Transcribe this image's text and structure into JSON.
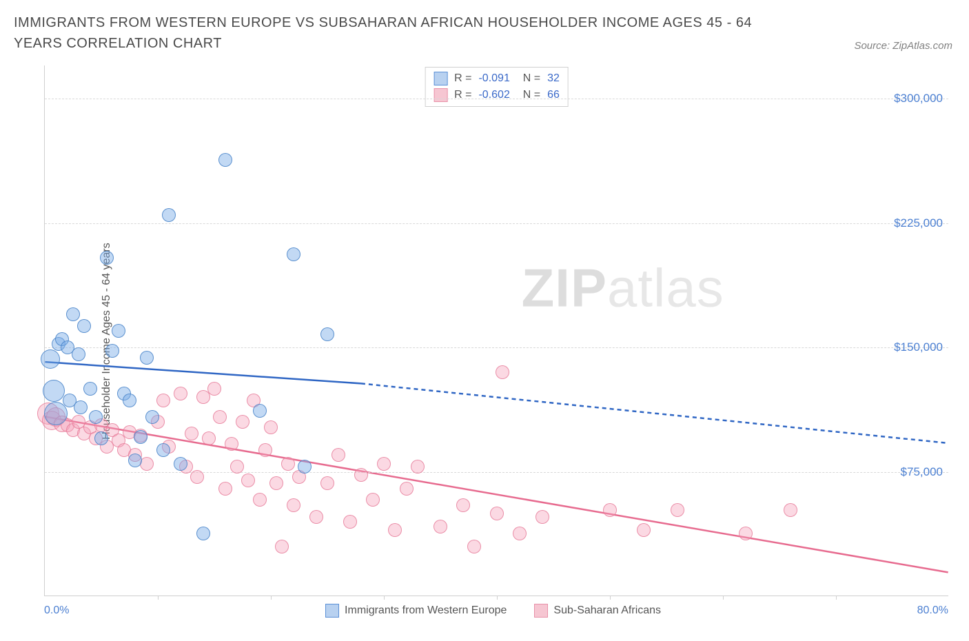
{
  "title": "IMMIGRANTS FROM WESTERN EUROPE VS SUBSAHARAN AFRICAN HOUSEHOLDER INCOME AGES 45 - 64 YEARS CORRELATION CHART",
  "source": "Source: ZipAtlas.com",
  "watermark_a": "ZIP",
  "watermark_b": "atlas",
  "chart": {
    "type": "scatter",
    "ylabel": "Householder Income Ages 45 - 64 years",
    "xlim": [
      0,
      80
    ],
    "ylim": [
      0,
      320000
    ],
    "x_min_label": "0.0%",
    "x_max_label": "80.0%",
    "y_ticks": [
      75000,
      150000,
      225000,
      300000
    ],
    "y_tick_labels": [
      "$75,000",
      "$150,000",
      "$225,000",
      "$300,000"
    ],
    "x_tick_positions": [
      10,
      20,
      30,
      40,
      50,
      60,
      70
    ],
    "background_color": "#ffffff",
    "grid_color": "#d8d8d8",
    "axis_color": "#cfcfcf",
    "tick_label_color": "#4b7fd1",
    "stats": {
      "blue": {
        "R": "-0.091",
        "N": "32"
      },
      "pink": {
        "R": "-0.602",
        "N": "66"
      }
    },
    "legend": {
      "blue": "Immigrants from Western Europe",
      "pink": "Sub-Saharan Africans"
    },
    "series": {
      "blue": {
        "color_fill": "rgba(120,170,230,0.45)",
        "color_stroke": "rgba(70,130,200,0.85)",
        "marker_radius": 10,
        "trend": {
          "x1": 0,
          "y1": 141000,
          "x2_solid": 28,
          "y2_solid": 128000,
          "x2": 80,
          "y2": 92000,
          "stroke": "#2f66c4",
          "stroke_width": 2.5,
          "dash": "6 5"
        },
        "points": [
          {
            "x": 0.5,
            "y": 143000,
            "r": 14
          },
          {
            "x": 0.8,
            "y": 124000,
            "r": 16
          },
          {
            "x": 1.0,
            "y": 110000,
            "r": 17
          },
          {
            "x": 1.2,
            "y": 152000,
            "r": 10
          },
          {
            "x": 1.5,
            "y": 155000,
            "r": 10
          },
          {
            "x": 2.0,
            "y": 150000,
            "r": 10
          },
          {
            "x": 2.2,
            "y": 118000,
            "r": 10
          },
          {
            "x": 2.5,
            "y": 170000,
            "r": 10
          },
          {
            "x": 3.0,
            "y": 146000,
            "r": 10
          },
          {
            "x": 3.2,
            "y": 114000,
            "r": 10
          },
          {
            "x": 3.5,
            "y": 163000,
            "r": 10
          },
          {
            "x": 4.0,
            "y": 125000,
            "r": 10
          },
          {
            "x": 4.5,
            "y": 108000,
            "r": 10
          },
          {
            "x": 5.0,
            "y": 95000,
            "r": 10
          },
          {
            "x": 5.5,
            "y": 204000,
            "r": 10
          },
          {
            "x": 6.0,
            "y": 148000,
            "r": 10
          },
          {
            "x": 6.5,
            "y": 160000,
            "r": 10
          },
          {
            "x": 7.0,
            "y": 122000,
            "r": 10
          },
          {
            "x": 7.5,
            "y": 118000,
            "r": 10
          },
          {
            "x": 8.0,
            "y": 82000,
            "r": 10
          },
          {
            "x": 8.5,
            "y": 96000,
            "r": 10
          },
          {
            "x": 9.0,
            "y": 144000,
            "r": 10
          },
          {
            "x": 9.5,
            "y": 108000,
            "r": 10
          },
          {
            "x": 10.5,
            "y": 88000,
            "r": 10
          },
          {
            "x": 11.0,
            "y": 230000,
            "r": 10
          },
          {
            "x": 12.0,
            "y": 80000,
            "r": 10
          },
          {
            "x": 14.0,
            "y": 38000,
            "r": 10
          },
          {
            "x": 16.0,
            "y": 263000,
            "r": 10
          },
          {
            "x": 19.0,
            "y": 112000,
            "r": 10
          },
          {
            "x": 22.0,
            "y": 206000,
            "r": 10
          },
          {
            "x": 23.0,
            "y": 78000,
            "r": 10
          },
          {
            "x": 25.0,
            "y": 158000,
            "r": 10
          }
        ]
      },
      "pink": {
        "color_fill": "rgba(245,160,185,0.40)",
        "color_stroke": "rgba(230,120,150,0.80)",
        "marker_radius": 10,
        "trend": {
          "x1": 0,
          "y1": 108000,
          "x2_solid": 80,
          "y2_solid": 14000,
          "x2": 80,
          "y2": 14000,
          "stroke": "#e76b8f",
          "stroke_width": 2.5,
          "dash": ""
        },
        "points": [
          {
            "x": 0.3,
            "y": 110000,
            "r": 16
          },
          {
            "x": 0.6,
            "y": 106000,
            "r": 14
          },
          {
            "x": 1.0,
            "y": 108000,
            "r": 14
          },
          {
            "x": 1.5,
            "y": 104000,
            "r": 12
          },
          {
            "x": 2.0,
            "y": 103000,
            "r": 10
          },
          {
            "x": 2.5,
            "y": 100000,
            "r": 10
          },
          {
            "x": 3.0,
            "y": 105000,
            "r": 10
          },
          {
            "x": 3.5,
            "y": 98000,
            "r": 10
          },
          {
            "x": 4.0,
            "y": 102000,
            "r": 10
          },
          {
            "x": 4.5,
            "y": 95000,
            "r": 10
          },
          {
            "x": 5.0,
            "y": 103000,
            "r": 10
          },
          {
            "x": 5.5,
            "y": 90000,
            "r": 10
          },
          {
            "x": 6.0,
            "y": 100000,
            "r": 10
          },
          {
            "x": 6.5,
            "y": 94000,
            "r": 10
          },
          {
            "x": 7.0,
            "y": 88000,
            "r": 10
          },
          {
            "x": 7.5,
            "y": 99000,
            "r": 10
          },
          {
            "x": 8.0,
            "y": 85000,
            "r": 10
          },
          {
            "x": 8.5,
            "y": 97000,
            "r": 10
          },
          {
            "x": 9.0,
            "y": 80000,
            "r": 10
          },
          {
            "x": 10.0,
            "y": 105000,
            "r": 10
          },
          {
            "x": 10.5,
            "y": 118000,
            "r": 10
          },
          {
            "x": 11.0,
            "y": 90000,
            "r": 10
          },
          {
            "x": 12.0,
            "y": 122000,
            "r": 10
          },
          {
            "x": 12.5,
            "y": 78000,
            "r": 10
          },
          {
            "x": 13.0,
            "y": 98000,
            "r": 10
          },
          {
            "x": 13.5,
            "y": 72000,
            "r": 10
          },
          {
            "x": 14.0,
            "y": 120000,
            "r": 10
          },
          {
            "x": 14.5,
            "y": 95000,
            "r": 10
          },
          {
            "x": 15.0,
            "y": 125000,
            "r": 10
          },
          {
            "x": 15.5,
            "y": 108000,
            "r": 10
          },
          {
            "x": 16.0,
            "y": 65000,
            "r": 10
          },
          {
            "x": 16.5,
            "y": 92000,
            "r": 10
          },
          {
            "x": 17.0,
            "y": 78000,
            "r": 10
          },
          {
            "x": 17.5,
            "y": 105000,
            "r": 10
          },
          {
            "x": 18.0,
            "y": 70000,
            "r": 10
          },
          {
            "x": 18.5,
            "y": 118000,
            "r": 10
          },
          {
            "x": 19.0,
            "y": 58000,
            "r": 10
          },
          {
            "x": 19.5,
            "y": 88000,
            "r": 10
          },
          {
            "x": 20.0,
            "y": 102000,
            "r": 10
          },
          {
            "x": 20.5,
            "y": 68000,
            "r": 10
          },
          {
            "x": 21.0,
            "y": 30000,
            "r": 10
          },
          {
            "x": 21.5,
            "y": 80000,
            "r": 10
          },
          {
            "x": 22.0,
            "y": 55000,
            "r": 10
          },
          {
            "x": 22.5,
            "y": 72000,
            "r": 10
          },
          {
            "x": 24.0,
            "y": 48000,
            "r": 10
          },
          {
            "x": 25.0,
            "y": 68000,
            "r": 10
          },
          {
            "x": 26.0,
            "y": 85000,
            "r": 10
          },
          {
            "x": 27.0,
            "y": 45000,
            "r": 10
          },
          {
            "x": 28.0,
            "y": 73000,
            "r": 10
          },
          {
            "x": 29.0,
            "y": 58000,
            "r": 10
          },
          {
            "x": 30.0,
            "y": 80000,
            "r": 10
          },
          {
            "x": 31.0,
            "y": 40000,
            "r": 10
          },
          {
            "x": 32.0,
            "y": 65000,
            "r": 10
          },
          {
            "x": 33.0,
            "y": 78000,
            "r": 10
          },
          {
            "x": 35.0,
            "y": 42000,
            "r": 10
          },
          {
            "x": 37.0,
            "y": 55000,
            "r": 10
          },
          {
            "x": 38.0,
            "y": 30000,
            "r": 10
          },
          {
            "x": 40.0,
            "y": 50000,
            "r": 10
          },
          {
            "x": 40.5,
            "y": 135000,
            "r": 10
          },
          {
            "x": 42.0,
            "y": 38000,
            "r": 10
          },
          {
            "x": 44.0,
            "y": 48000,
            "r": 10
          },
          {
            "x": 50.0,
            "y": 52000,
            "r": 10
          },
          {
            "x": 53.0,
            "y": 40000,
            "r": 10
          },
          {
            "x": 56.0,
            "y": 52000,
            "r": 10
          },
          {
            "x": 62.0,
            "y": 38000,
            "r": 10
          },
          {
            "x": 66.0,
            "y": 52000,
            "r": 10
          }
        ]
      }
    }
  }
}
